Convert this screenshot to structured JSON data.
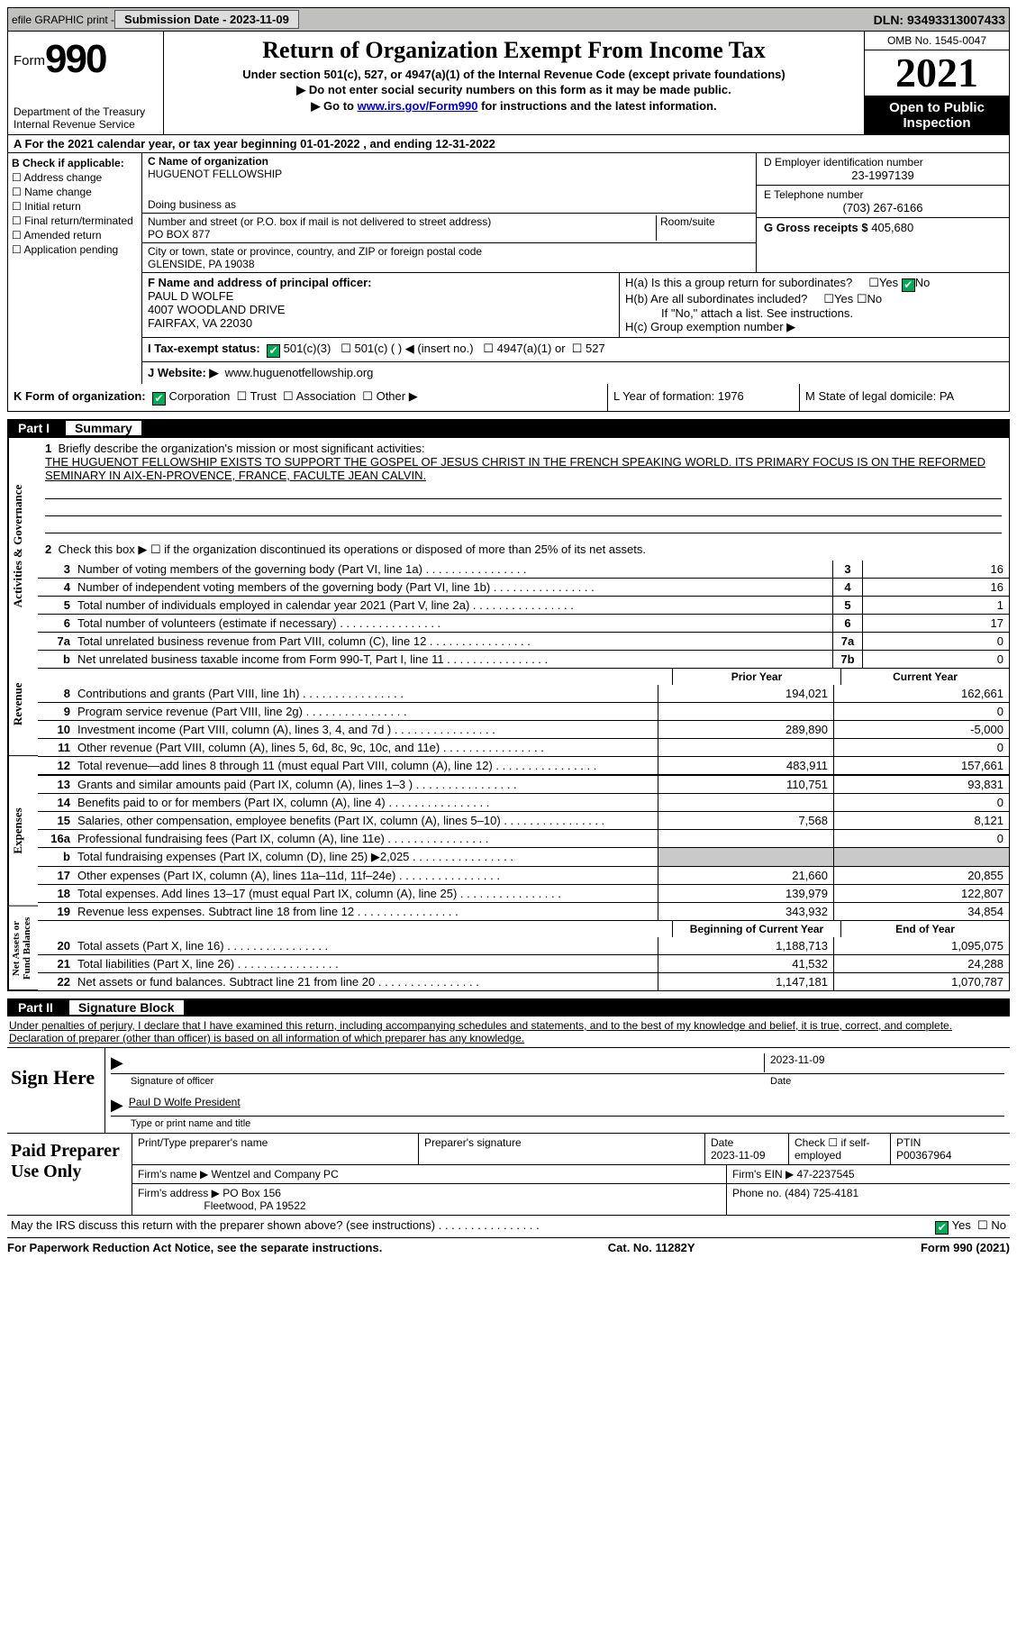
{
  "topbar": {
    "efile": "efile GRAPHIC print -",
    "submission_label": "Submission Date - 2023-11-09",
    "dln": "DLN: 93493313007433"
  },
  "header": {
    "form_label": "Form",
    "form_num": "990",
    "dept": "Department of the Treasury Internal Revenue Service",
    "title": "Return of Organization Exempt From Income Tax",
    "subtitle": "Under section 501(c), 527, or 4947(a)(1) of the Internal Revenue Code (except private foundations)",
    "note1": "▶ Do not enter social security numbers on this form as it may be made public.",
    "note2_pre": "▶ Go to ",
    "note2_link": "www.irs.gov/Form990",
    "note2_post": " for instructions and the latest information.",
    "omb": "OMB No. 1545-0047",
    "year": "2021",
    "open": "Open to Public Inspection"
  },
  "row_a": "A For the 2021 calendar year, or tax year beginning 01-01-2022   , and ending 12-31-2022",
  "b": {
    "label": "B Check if applicable:",
    "items": [
      "Address change",
      "Name change",
      "Initial return",
      "Final return/terminated",
      "Amended return",
      "Application pending"
    ]
  },
  "c": {
    "name_lbl": "C Name of organization",
    "name": "HUGUENOT FELLOWSHIP",
    "dba_lbl": "Doing business as",
    "addr_lbl": "Number and street (or P.O. box if mail is not delivered to street address)",
    "room_lbl": "Room/suite",
    "addr": "PO BOX 877",
    "city_lbl": "City or town, state or province, country, and ZIP or foreign postal code",
    "city": "GLENSIDE, PA  19038"
  },
  "d": {
    "ein_lbl": "D Employer identification number",
    "ein": "23-1997139",
    "tel_lbl": "E Telephone number",
    "tel": "(703) 267-6166",
    "gross_lbl": "G Gross receipts $",
    "gross": "405,680"
  },
  "f": {
    "lbl": "F  Name and address of principal officer:",
    "name": "PAUL D WOLFE",
    "addr1": "4007 WOODLAND DRIVE",
    "addr2": "FAIRFAX, VA  22030"
  },
  "h": {
    "a": "H(a)  Is this a group return for subordinates?",
    "b": "H(b)  Are all subordinates included?",
    "bnote": "If \"No,\" attach a list. See instructions.",
    "c": "H(c)  Group exemption number ▶"
  },
  "i": {
    "lbl": "I    Tax-exempt status:",
    "o1": "501(c)(3)",
    "o2": "501(c) (  ) ◀ (insert no.)",
    "o3": "4947(a)(1) or",
    "o4": "527"
  },
  "j": {
    "lbl": "J   Website: ▶",
    "val": "www.huguenotfellowship.org"
  },
  "k": {
    "lbl": "K Form of organization:",
    "corp": "Corporation",
    "trust": "Trust",
    "assoc": "Association",
    "other": "Other ▶",
    "l": "L Year of formation: 1976",
    "m": "M State of legal domicile: PA"
  },
  "part1": {
    "hdr_num": "Part I",
    "hdr_title": "Summary",
    "side_ag": "Activities & Governance",
    "side_rev": "Revenue",
    "side_exp": "Expenses",
    "side_net": "Net Assets or Fund Balances",
    "l1_lbl": "Briefly describe the organization's mission or most significant activities:",
    "l1_txt": "THE HUGUENOT FELLOWSHIP EXISTS TO SUPPORT THE GOSPEL OF JESUS CHRIST IN THE FRENCH SPEAKING WORLD. ITS PRIMARY FOCUS IS ON THE REFORMED SEMINARY IN AIX-EN-PROVENCE, FRANCE, FACULTE JEAN CALVIN.",
    "l2": "Check this box ▶ ☐  if the organization discontinued its operations or disposed of more than 25% of its net assets.",
    "lines_ag": [
      {
        "n": "3",
        "d": "Number of voting members of the governing body (Part VI, line 1a)",
        "b": "3",
        "v": "16"
      },
      {
        "n": "4",
        "d": "Number of independent voting members of the governing body (Part VI, line 1b)",
        "b": "4",
        "v": "16"
      },
      {
        "n": "5",
        "d": "Total number of individuals employed in calendar year 2021 (Part V, line 2a)",
        "b": "5",
        "v": "1"
      },
      {
        "n": "6",
        "d": "Total number of volunteers (estimate if necessary)",
        "b": "6",
        "v": "17"
      },
      {
        "n": "7a",
        "d": "Total unrelated business revenue from Part VIII, column (C), line 12",
        "b": "7a",
        "v": "0"
      },
      {
        "n": "b",
        "d": "Net unrelated business taxable income from Form 990-T, Part I, line 11",
        "b": "7b",
        "v": "0"
      }
    ],
    "py_lbl": "Prior Year",
    "cy_lbl": "Current Year",
    "lines_rev": [
      {
        "n": "8",
        "d": "Contributions and grants (Part VIII, line 1h)",
        "py": "194,021",
        "cy": "162,661"
      },
      {
        "n": "9",
        "d": "Program service revenue (Part VIII, line 2g)",
        "py": "",
        "cy": "0"
      },
      {
        "n": "10",
        "d": "Investment income (Part VIII, column (A), lines 3, 4, and 7d )",
        "py": "289,890",
        "cy": "-5,000"
      },
      {
        "n": "11",
        "d": "Other revenue (Part VIII, column (A), lines 5, 6d, 8c, 9c, 10c, and 11e)",
        "py": "",
        "cy": "0"
      },
      {
        "n": "12",
        "d": "Total revenue—add lines 8 through 11 (must equal Part VIII, column (A), line 12)",
        "py": "483,911",
        "cy": "157,661"
      }
    ],
    "lines_exp": [
      {
        "n": "13",
        "d": "Grants and similar amounts paid (Part IX, column (A), lines 1–3 )",
        "py": "110,751",
        "cy": "93,831"
      },
      {
        "n": "14",
        "d": "Benefits paid to or for members (Part IX, column (A), line 4)",
        "py": "",
        "cy": "0"
      },
      {
        "n": "15",
        "d": "Salaries, other compensation, employee benefits (Part IX, column (A), lines 5–10)",
        "py": "7,568",
        "cy": "8,121"
      },
      {
        "n": "16a",
        "d": "Professional fundraising fees (Part IX, column (A), line 11e)",
        "py": "",
        "cy": "0"
      },
      {
        "n": "b",
        "d": "Total fundraising expenses (Part IX, column (D), line 25) ▶2,025",
        "py": "SHADE",
        "cy": "SHADE"
      },
      {
        "n": "17",
        "d": "Other expenses (Part IX, column (A), lines 11a–11d, 11f–24e)",
        "py": "21,660",
        "cy": "20,855"
      },
      {
        "n": "18",
        "d": "Total expenses. Add lines 13–17 (must equal Part IX, column (A), line 25)",
        "py": "139,979",
        "cy": "122,807"
      },
      {
        "n": "19",
        "d": "Revenue less expenses. Subtract line 18 from line 12",
        "py": "343,932",
        "cy": "34,854"
      }
    ],
    "boy_lbl": "Beginning of Current Year",
    "eoy_lbl": "End of Year",
    "lines_net": [
      {
        "n": "20",
        "d": "Total assets (Part X, line 16)",
        "py": "1,188,713",
        "cy": "1,095,075"
      },
      {
        "n": "21",
        "d": "Total liabilities (Part X, line 26)",
        "py": "41,532",
        "cy": "24,288"
      },
      {
        "n": "22",
        "d": "Net assets or fund balances. Subtract line 21 from line 20",
        "py": "1,147,181",
        "cy": "1,070,787"
      }
    ]
  },
  "part2": {
    "hdr_num": "Part II",
    "hdr_title": "Signature Block",
    "penalty": "Under penalties of perjury, I declare that I have examined this return, including accompanying schedules and statements, and to the best of my knowledge and belief, it is true, correct, and complete. Declaration of preparer (other than officer) is based on all information of which preparer has any knowledge.",
    "sign_here": "Sign Here",
    "sig_officer": "Signature of officer",
    "sig_date": "2023-11-09",
    "sig_date_lbl": "Date",
    "sig_name": "Paul D Wolfe  President",
    "sig_type": "Type or print name and title",
    "paid": "Paid Preparer Use Only",
    "prep_name_lbl": "Print/Type preparer's name",
    "prep_sig_lbl": "Preparer's signature",
    "prep_date_lbl": "Date",
    "prep_date": "2023-11-09",
    "prep_check": "Check ☐ if self-employed",
    "ptin_lbl": "PTIN",
    "ptin": "P00367964",
    "firm_name_lbl": "Firm's name     ▶",
    "firm_name": "Wentzel and Company PC",
    "firm_ein_lbl": "Firm's EIN ▶",
    "firm_ein": "47-2237545",
    "firm_addr_lbl": "Firm's address ▶",
    "firm_addr1": "PO Box 156",
    "firm_addr2": "Fleetwood, PA  19522",
    "phone_lbl": "Phone no.",
    "phone": "(484) 725-4181"
  },
  "footer": {
    "discuss": "May the IRS discuss this return with the preparer shown above? (see instructions)",
    "yes": "Yes",
    "no": "No",
    "paperwork": "For Paperwork Reduction Act Notice, see the separate instructions.",
    "cat": "Cat. No. 11282Y",
    "form": "Form 990 (2021)"
  }
}
